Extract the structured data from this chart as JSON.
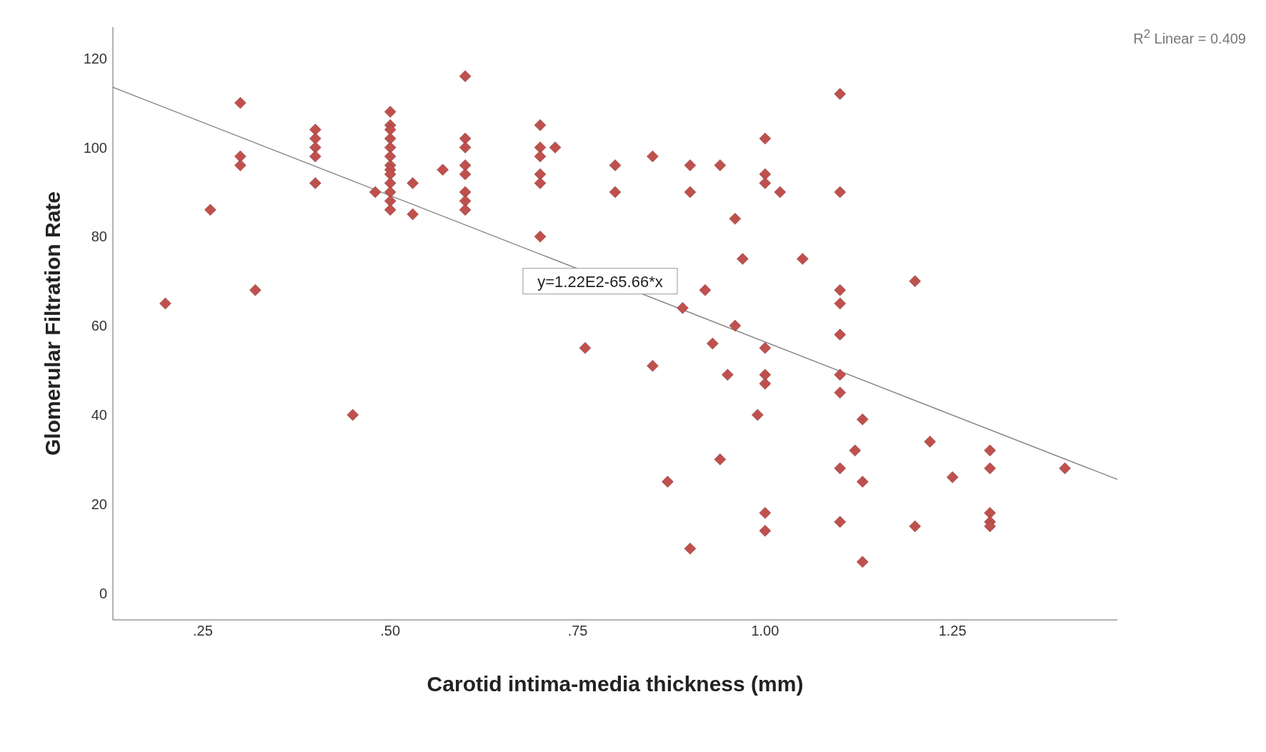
{
  "chart_data": {
    "type": "scatter",
    "xlabel": "Carotid intima-media thickness (mm)",
    "ylabel": "Glomerular Filtration Rate",
    "xlim": [
      0.13,
      1.47
    ],
    "ylim": [
      -6,
      127
    ],
    "xticks": [
      {
        "value": 0.25,
        "label": ".25"
      },
      {
        "value": 0.5,
        "label": ".50"
      },
      {
        "value": 0.75,
        "label": ".75"
      },
      {
        "value": 1,
        "label": "1.00"
      },
      {
        "value": 1.25,
        "label": "1.25"
      }
    ],
    "yticks": [
      0,
      20,
      40,
      60,
      80,
      100,
      120
    ],
    "grid": false,
    "marker": "diamond",
    "annotations": [
      {
        "text": "y=1.22E2-65.66*x",
        "x": 0.78,
        "y": 70
      },
      "R$^{2}$ Linear = 0.409"
    ],
    "series": [
      {
        "color": "#c0504d",
        "x": [
          0.2,
          0.26,
          0.3,
          0.3,
          0.3,
          0.32,
          0.4,
          0.4,
          0.4,
          0.4,
          0.4,
          0.45,
          0.48,
          0.5,
          0.5,
          0.5,
          0.5,
          0.5,
          0.5,
          0.5,
          0.5,
          0.5,
          0.5,
          0.5,
          0.5,
          0.5,
          0.53,
          0.53,
          0.57,
          0.6,
          0.6,
          0.6,
          0.6,
          0.6,
          0.6,
          0.6,
          0.6,
          0.7,
          0.7,
          0.7,
          0.7,
          0.7,
          0.7,
          0.72,
          0.76,
          0.8,
          0.8,
          0.85,
          0.85,
          0.87,
          0.9,
          0.9,
          0.9,
          0.89,
          0.92,
          0.93,
          0.94,
          0.94,
          0.95,
          0.96,
          0.96,
          0.97,
          0.99,
          1,
          1,
          1,
          1,
          1,
          1,
          1,
          1,
          1.02,
          1.05,
          1.1,
          1.1,
          1.1,
          1.1,
          1.1,
          1.1,
          1.1,
          1.1,
          1.1,
          1.12,
          1.13,
          1.13,
          1.13,
          1.2,
          1.2,
          1.22,
          1.25,
          1.3,
          1.3,
          1.3,
          1.3,
          1.3,
          1.4
        ],
        "values": [
          65,
          86,
          110,
          98,
          96,
          68,
          104,
          102,
          100,
          98,
          92,
          40,
          90,
          108,
          105,
          104,
          102,
          100,
          98,
          96,
          95,
          94,
          92,
          90,
          88,
          86,
          92,
          85,
          95,
          116,
          102,
          100,
          96,
          94,
          90,
          88,
          86,
          105,
          100,
          98,
          94,
          92,
          80,
          100,
          55,
          96,
          90,
          98,
          51,
          25,
          96,
          90,
          10,
          64,
          68,
          56,
          96,
          30,
          49,
          84,
          60,
          75,
          40,
          102,
          94,
          92,
          55,
          49,
          47,
          18,
          14,
          90,
          75,
          112,
          90,
          68,
          65,
          58,
          49,
          45,
          28,
          16,
          32,
          39,
          25,
          7,
          70,
          15,
          34,
          26,
          32,
          28,
          18,
          16,
          15,
          28
        ]
      },
      {
        "type": "line",
        "color": "#8c8c8c",
        "x": [
          0.13,
          1.47
        ],
        "values": [
          113.5,
          25.5
        ],
        "line_style": "solid",
        "marker": "none"
      }
    ]
  }
}
